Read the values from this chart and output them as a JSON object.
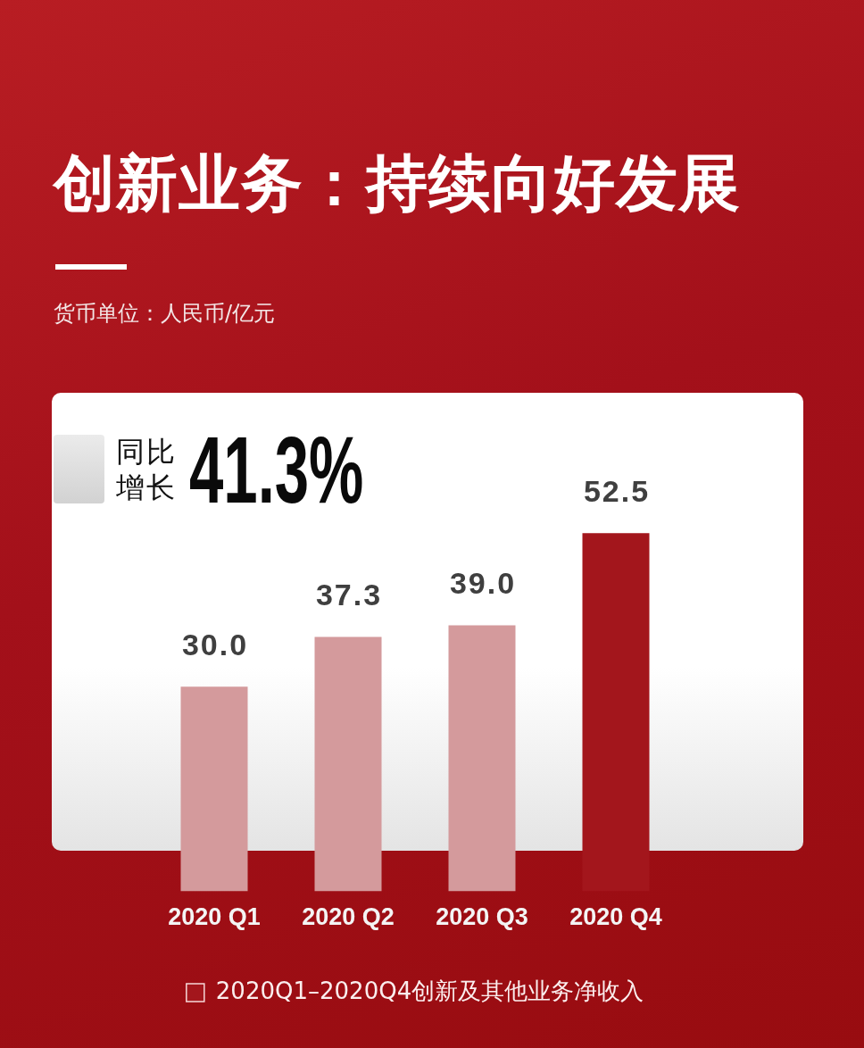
{
  "chart_data": {
    "type": "bar",
    "title": "创新业务：持续向好发展",
    "subtitle": "货币单位：人民币/亿元",
    "annotations": [
      "同比增长",
      "41.3%"
    ],
    "categories": [
      "2020 Q1",
      "2020 Q2",
      "2020 Q3",
      "2020 Q4"
    ],
    "series": [
      {
        "name": "2020Q1–2020Q4创新及其他业务净收入",
        "color": "#a3161c",
        "colors": [
          "#d49a9c",
          "#d49a9c",
          "#d49a9c",
          "#a3161c"
        ],
        "values": [
          30.0,
          37.3,
          39.0,
          52.5
        ],
        "value_labels": [
          "30.0",
          "37.3",
          "39.0",
          "52.5"
        ]
      }
    ],
    "legend": "bottom",
    "grid": false
  }
}
